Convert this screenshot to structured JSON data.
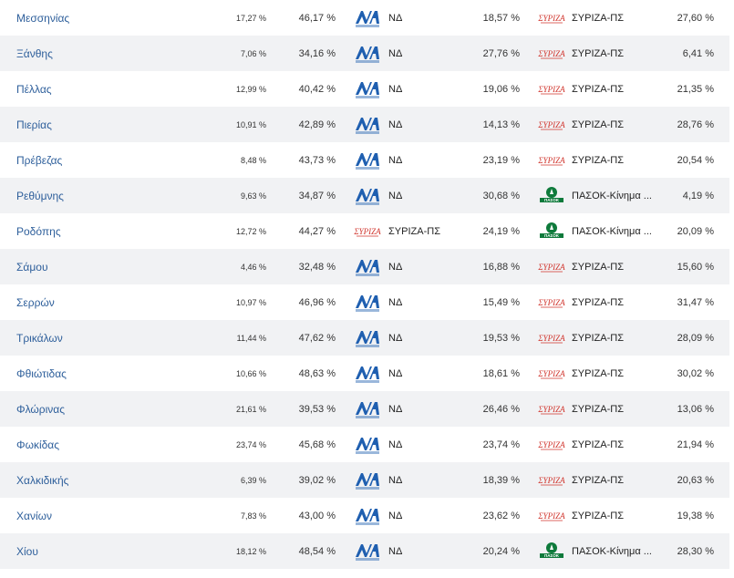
{
  "logos": {
    "nd": {
      "icon": "nd-logo-icon",
      "text": "ΝΔ",
      "small": "ΝΕΑ ΔΗΜΟΚΡΑΤΙΑ",
      "color": "#1f5fb0"
    },
    "syriza": {
      "icon": "syriza-logo-icon",
      "text": "ΣΥΡΙΖΑ",
      "color": "#d0342c"
    },
    "pasok": {
      "icon": "pasok-logo-icon",
      "text": "ΠΑΣΟΚ",
      "small": "Κίνημα Αλλαγής",
      "color": "#0e7a3b"
    }
  },
  "rows": [
    {
      "region": "Μεσσηνίας",
      "turnout": "17,27 %",
      "p1": "46,17 %",
      "party1": "ΝΔ",
      "logo1": "nd",
      "p2": "18,57 %",
      "party2": "ΣΥΡΙΖΑ-ΠΣ",
      "logo2": "syriza",
      "diff": "27,60 %"
    },
    {
      "region": "Ξάνθης",
      "turnout": "7,06 %",
      "p1": "34,16 %",
      "party1": "ΝΔ",
      "logo1": "nd",
      "p2": "27,76 %",
      "party2": "ΣΥΡΙΖΑ-ΠΣ",
      "logo2": "syriza",
      "diff": "6,41 %"
    },
    {
      "region": "Πέλλας",
      "turnout": "12,99 %",
      "p1": "40,42 %",
      "party1": "ΝΔ",
      "logo1": "nd",
      "p2": "19,06 %",
      "party2": "ΣΥΡΙΖΑ-ΠΣ",
      "logo2": "syriza",
      "diff": "21,35 %"
    },
    {
      "region": "Πιερίας",
      "turnout": "10,91 %",
      "p1": "42,89 %",
      "party1": "ΝΔ",
      "logo1": "nd",
      "p2": "14,13 %",
      "party2": "ΣΥΡΙΖΑ-ΠΣ",
      "logo2": "syriza",
      "diff": "28,76 %"
    },
    {
      "region": "Πρέβεζας",
      "turnout": "8,48 %",
      "p1": "43,73 %",
      "party1": "ΝΔ",
      "logo1": "nd",
      "p2": "23,19 %",
      "party2": "ΣΥΡΙΖΑ-ΠΣ",
      "logo2": "syriza",
      "diff": "20,54 %"
    },
    {
      "region": "Ρεθύμνης",
      "turnout": "9,63 %",
      "p1": "34,87 %",
      "party1": "ΝΔ",
      "logo1": "nd",
      "p2": "30,68 %",
      "party2": "ΠΑΣΟΚ-Κίνημα ...",
      "logo2": "pasok",
      "diff": "4,19 %"
    },
    {
      "region": "Ροδόπης",
      "turnout": "12,72 %",
      "p1": "44,27 %",
      "party1": "ΣΥΡΙΖΑ-ΠΣ",
      "logo1": "syriza",
      "p2": "24,19 %",
      "party2": "ΠΑΣΟΚ-Κίνημα ...",
      "logo2": "pasok",
      "diff": "20,09 %"
    },
    {
      "region": "Σάμου",
      "turnout": "4,46 %",
      "p1": "32,48 %",
      "party1": "ΝΔ",
      "logo1": "nd",
      "p2": "16,88 %",
      "party2": "ΣΥΡΙΖΑ-ΠΣ",
      "logo2": "syriza",
      "diff": "15,60 %"
    },
    {
      "region": "Σερρών",
      "turnout": "10,97 %",
      "p1": "46,96 %",
      "party1": "ΝΔ",
      "logo1": "nd",
      "p2": "15,49 %",
      "party2": "ΣΥΡΙΖΑ-ΠΣ",
      "logo2": "syriza",
      "diff": "31,47 %"
    },
    {
      "region": "Τρικάλων",
      "turnout": "11,44 %",
      "p1": "47,62 %",
      "party1": "ΝΔ",
      "logo1": "nd",
      "p2": "19,53 %",
      "party2": "ΣΥΡΙΖΑ-ΠΣ",
      "logo2": "syriza",
      "diff": "28,09 %"
    },
    {
      "region": "Φθιώτιδας",
      "turnout": "10,66 %",
      "p1": "48,63 %",
      "party1": "ΝΔ",
      "logo1": "nd",
      "p2": "18,61 %",
      "party2": "ΣΥΡΙΖΑ-ΠΣ",
      "logo2": "syriza",
      "diff": "30,02 %"
    },
    {
      "region": "Φλώρινας",
      "turnout": "21,61 %",
      "p1": "39,53 %",
      "party1": "ΝΔ",
      "logo1": "nd",
      "p2": "26,46 %",
      "party2": "ΣΥΡΙΖΑ-ΠΣ",
      "logo2": "syriza",
      "diff": "13,06 %"
    },
    {
      "region": "Φωκίδας",
      "turnout": "23,74 %",
      "p1": "45,68 %",
      "party1": "ΝΔ",
      "logo1": "nd",
      "p2": "23,74 %",
      "party2": "ΣΥΡΙΖΑ-ΠΣ",
      "logo2": "syriza",
      "diff": "21,94 %"
    },
    {
      "region": "Χαλκιδικής",
      "turnout": "6,39 %",
      "p1": "39,02 %",
      "party1": "ΝΔ",
      "logo1": "nd",
      "p2": "18,39 %",
      "party2": "ΣΥΡΙΖΑ-ΠΣ",
      "logo2": "syriza",
      "diff": "20,63 %"
    },
    {
      "region": "Χανίων",
      "turnout": "7,83 %",
      "p1": "43,00 %",
      "party1": "ΝΔ",
      "logo1": "nd",
      "p2": "23,62 %",
      "party2": "ΣΥΡΙΖΑ-ΠΣ",
      "logo2": "syriza",
      "diff": "19,38 %"
    },
    {
      "region": "Χίου",
      "turnout": "18,12 %",
      "p1": "48,54 %",
      "party1": "ΝΔ",
      "logo1": "nd",
      "p2": "20,24 %",
      "party2": "ΠΑΣΟΚ-Κίνημα ...",
      "logo2": "pasok",
      "diff": "28,30 %"
    }
  ]
}
